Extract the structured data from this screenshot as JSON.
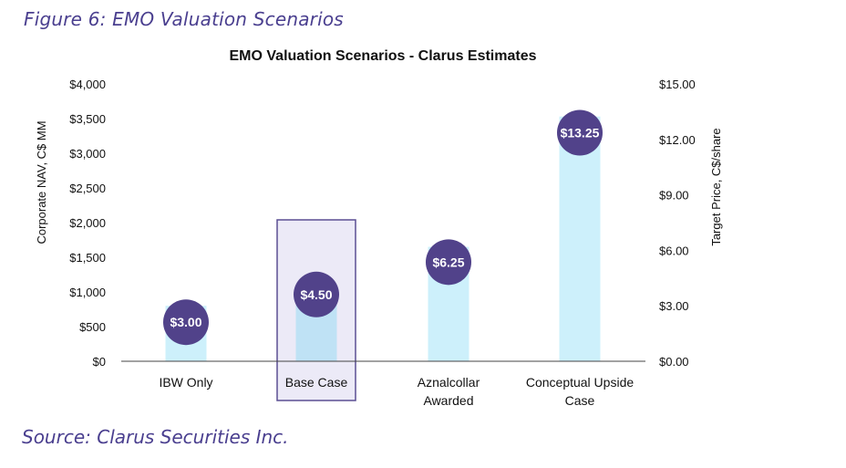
{
  "figure_title": "Figure 6:  EMO Valuation Scenarios",
  "source": "Source: Clarus Securities Inc.",
  "colors": {
    "bar": "#cdf0fb",
    "bar_highlight": "#bfe2f5",
    "bubble": "#51428a",
    "highlight_box_fill": "#eceaf7",
    "highlight_box_stroke": "#5b4f93",
    "axis": "#444444"
  },
  "chart_data": {
    "type": "bar",
    "title": "EMO Valuation Scenarios - Clarus Estimates",
    "categories": [
      [
        "IBW Only"
      ],
      [
        "Base Case"
      ],
      [
        "Aznalcollar",
        "Awarded"
      ],
      [
        "Conceptual Upside",
        "Case"
      ]
    ],
    "highlighted_category": "Base Case",
    "series": [
      {
        "name": "Corporate NAV",
        "axis": "left",
        "values": [
          800,
          1000,
          1650,
          3530
        ]
      },
      {
        "name": "Target Price",
        "axis": "right",
        "values": [
          3.0,
          4.5,
          6.25,
          13.25
        ],
        "labels": [
          "$3.00",
          "$4.50",
          "$6.25",
          "$13.25"
        ]
      }
    ],
    "ylabel": "Corporate NAV, C$ MM",
    "ylim": [
      0,
      4000
    ],
    "yticks": [
      "$0",
      "$500",
      "$1,000",
      "$1,500",
      "$2,000",
      "$2,500",
      "$3,000",
      "$3,500",
      "$4,000"
    ],
    "y2label": "Target Price, C$/share",
    "y2lim": [
      0,
      15
    ],
    "y2ticks": [
      "$0.00",
      "$3.00",
      "$6.00",
      "$9.00",
      "$12.00",
      "$15.00"
    ]
  }
}
